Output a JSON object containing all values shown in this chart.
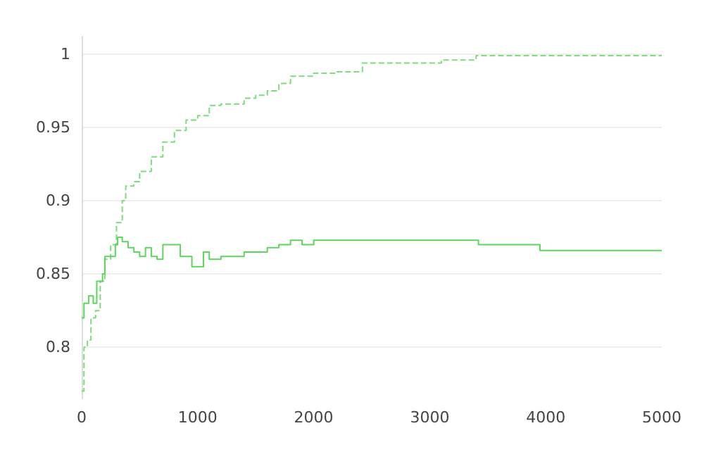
{
  "chart_data": {
    "type": "step",
    "xlim": [
      0,
      5000
    ],
    "xticks": [
      0,
      1000,
      2000,
      3000,
      4000,
      5000
    ],
    "ylim": [
      0.765,
      1.012
    ],
    "yticks": [
      0.8,
      0.85,
      0.9,
      0.95,
      1
    ],
    "grid": "y",
    "series": [
      {
        "color": "#7ddc7d",
        "line_style": "dashed",
        "x": [
          0,
          20,
          50,
          80,
          120,
          160,
          200,
          250,
          300,
          350,
          380,
          450,
          500,
          600,
          700,
          800,
          900,
          1000,
          1100,
          1200,
          1400,
          1500,
          1600,
          1700,
          1800,
          2000,
          2200,
          2420,
          3100,
          3400,
          5000
        ],
        "values": [
          0.77,
          0.8,
          0.805,
          0.82,
          0.825,
          0.845,
          0.86,
          0.87,
          0.885,
          0.9,
          0.91,
          0.913,
          0.92,
          0.93,
          0.94,
          0.948,
          0.955,
          0.958,
          0.965,
          0.966,
          0.97,
          0.972,
          0.975,
          0.98,
          0.985,
          0.987,
          0.988,
          0.994,
          0.996,
          0.999,
          0.999
        ]
      },
      {
        "color": "#5cd65c",
        "line_style": "solid",
        "x": [
          0,
          20,
          60,
          100,
          130,
          180,
          200,
          250,
          290,
          310,
          350,
          400,
          450,
          500,
          550,
          600,
          650,
          700,
          800,
          850,
          950,
          1050,
          1100,
          1200,
          1400,
          1600,
          1700,
          1800,
          1900,
          2000,
          3420,
          3950,
          5000
        ],
        "values": [
          0.82,
          0.83,
          0.835,
          0.83,
          0.845,
          0.85,
          0.862,
          0.862,
          0.87,
          0.875,
          0.872,
          0.868,
          0.865,
          0.862,
          0.868,
          0.862,
          0.86,
          0.87,
          0.87,
          0.862,
          0.855,
          0.865,
          0.86,
          0.862,
          0.865,
          0.868,
          0.87,
          0.873,
          0.87,
          0.873,
          0.87,
          0.866,
          0.866
        ]
      }
    ]
  }
}
